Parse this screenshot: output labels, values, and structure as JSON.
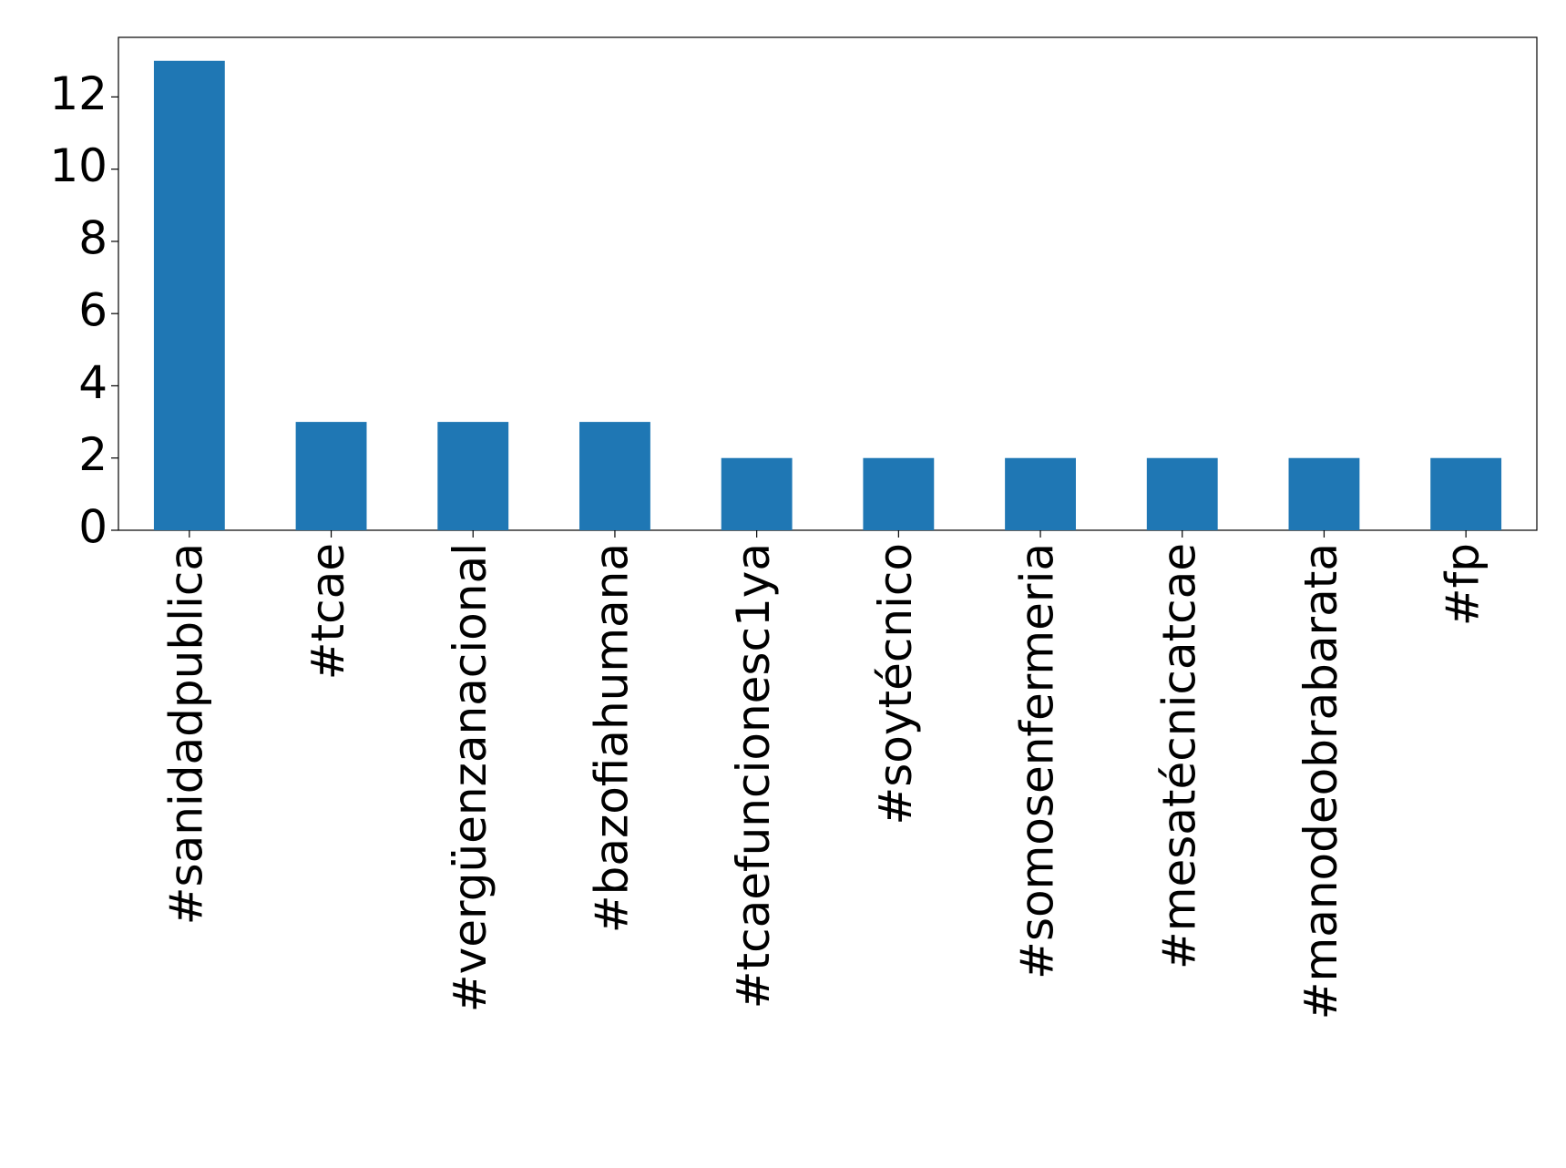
{
  "chart_data": {
    "type": "bar",
    "categories": [
      "#sanidadpublica",
      "#tcae",
      "#vergüenzanacional",
      "#bazofiahumana",
      "#tcaefuncionesc1ya",
      "#soytécnico",
      "#somosenfermeria",
      "#mesatécnicatcae",
      "#manodeobrabarata",
      "#fp"
    ],
    "values": [
      13,
      3,
      3,
      3,
      2,
      2,
      2,
      2,
      2,
      2
    ],
    "color": "#1f77b4",
    "ylim": [
      0,
      13.65
    ],
    "yticks": [
      0,
      2,
      4,
      6,
      8,
      10,
      12
    ],
    "grid": false
  }
}
